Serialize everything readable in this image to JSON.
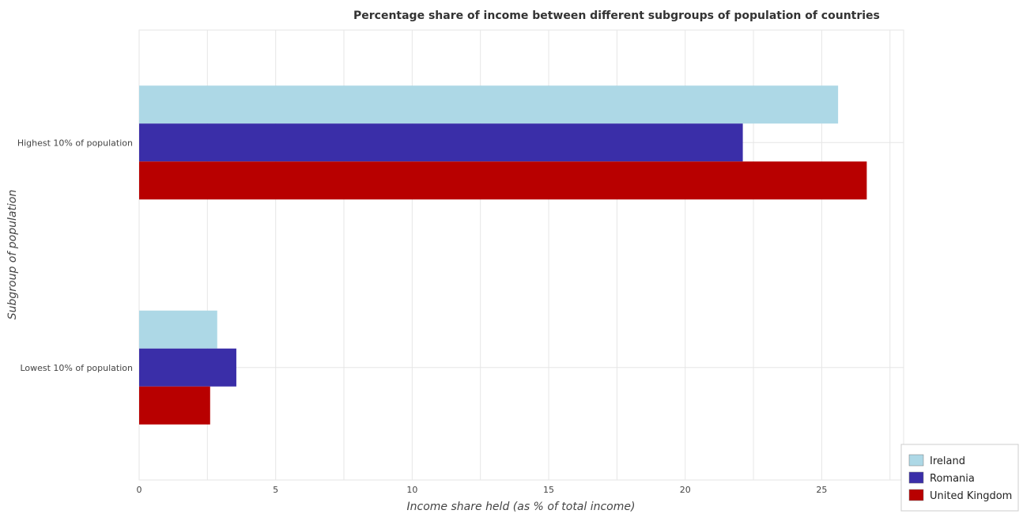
{
  "chart_data": {
    "type": "bar",
    "orientation": "horizontal",
    "title": "Percentage share of income between different subgroups of population of countries",
    "xlabel": "Income share held (as % of total income)",
    "ylabel": "Subgroup of population",
    "categories": [
      "Highest 10% of population",
      "Lowest 10% of population"
    ],
    "series": [
      {
        "name": "Ireland",
        "color": "#add8e6",
        "values": [
          25.6,
          2.86
        ]
      },
      {
        "name": "Romania",
        "color": "#3a2ea8",
        "values": [
          22.11,
          3.56
        ]
      },
      {
        "name": "United Kingdom",
        "color": "#b80000",
        "values": [
          26.65,
          2.6
        ]
      }
    ],
    "xticks": [
      0,
      5,
      10,
      15,
      20,
      25
    ],
    "xlim": [
      0,
      28
    ],
    "grid": true,
    "legend_position": "bottom-right"
  }
}
